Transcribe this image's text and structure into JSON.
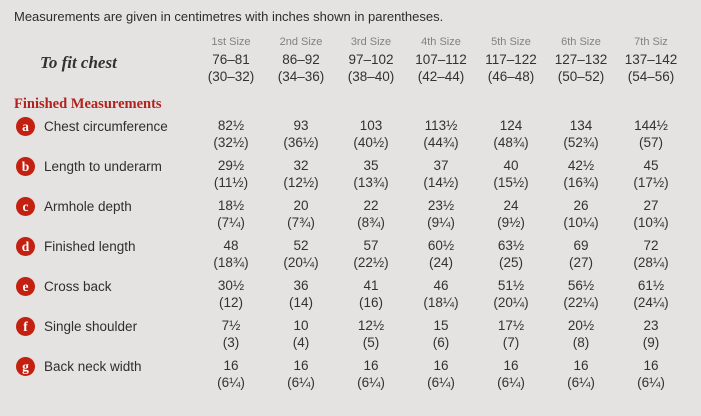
{
  "note": "Measurements are given in centimetres with inches shown in parentheses.",
  "table": {
    "size_headers": [
      "1st Size",
      "2nd Size",
      "3rd Size",
      "4th Size",
      "5th Size",
      "6th Size",
      "7th Siz"
    ],
    "to_fit_chest": {
      "label": "To fit chest",
      "cm": [
        "76–81",
        "86–92",
        "97–102",
        "107–112",
        "117–122",
        "127–132",
        "137–142"
      ],
      "inches": [
        "(30–32)",
        "(34–36)",
        "(38–40)",
        "(42–44)",
        "(46–48)",
        "(50–52)",
        "(54–56)"
      ]
    },
    "section_heading": "Finished Measurements",
    "rows": [
      {
        "badge": "a",
        "label": "Chest circumference",
        "cm": [
          "82½",
          "93",
          "103",
          "113½",
          "124",
          "134",
          "144½"
        ],
        "inches": [
          "(32½)",
          "(36½)",
          "(40½)",
          "(44¾)",
          "(48¾)",
          "(52¾)",
          "(57)"
        ]
      },
      {
        "badge": "b",
        "label": "Length to underarm",
        "cm": [
          "29½",
          "32",
          "35",
          "37",
          "40",
          "42½",
          "45"
        ],
        "inches": [
          "(11½)",
          "(12½)",
          "(13¾)",
          "(14½)",
          "(15½)",
          "(16¾)",
          "(17½)"
        ]
      },
      {
        "badge": "c",
        "label": "Armhole depth",
        "cm": [
          "18½",
          "20",
          "22",
          "23½",
          "24",
          "26",
          "27"
        ],
        "inches": [
          "(7¼)",
          "(7¾)",
          "(8¾)",
          "(9¼)",
          "(9½)",
          "(10¼)",
          "(10¾)"
        ]
      },
      {
        "badge": "d",
        "label": "Finished length",
        "cm": [
          "48",
          "52",
          "57",
          "60½",
          "63½",
          "69",
          "72"
        ],
        "inches": [
          "(18¾)",
          "(20¼)",
          "(22½)",
          "(24)",
          "(25)",
          "(27)",
          "(28¼)"
        ]
      },
      {
        "badge": "e",
        "label": "Cross back",
        "cm": [
          "30½",
          "36",
          "41",
          "46",
          "51½",
          "56½",
          "61½"
        ],
        "inches": [
          "(12)",
          "(14)",
          "(16)",
          "(18¼)",
          "(20¼)",
          "(22¼)",
          "(24¼)"
        ]
      },
      {
        "badge": "f",
        "label": "Single shoulder",
        "cm": [
          "7½",
          "10",
          "12½",
          "15",
          "17½",
          "20½",
          "23"
        ],
        "inches": [
          "(3)",
          "(4)",
          "(5)",
          "(6)",
          "(7)",
          "(8)",
          "(9)"
        ]
      },
      {
        "badge": "g",
        "label": "Back neck width",
        "cm": [
          "16",
          "16",
          "16",
          "16",
          "16",
          "16",
          "16"
        ],
        "inches": [
          "(6¼)",
          "(6¼)",
          "(6¼)",
          "(6¼)",
          "(6¼)",
          "(6¼)",
          "(6¼)"
        ]
      }
    ]
  },
  "colors": {
    "background": "#e4e3e1",
    "badge_red": "#c32011",
    "heading_red": "#b4211c",
    "text": "#33322f",
    "muted_header": "#82817e"
  }
}
